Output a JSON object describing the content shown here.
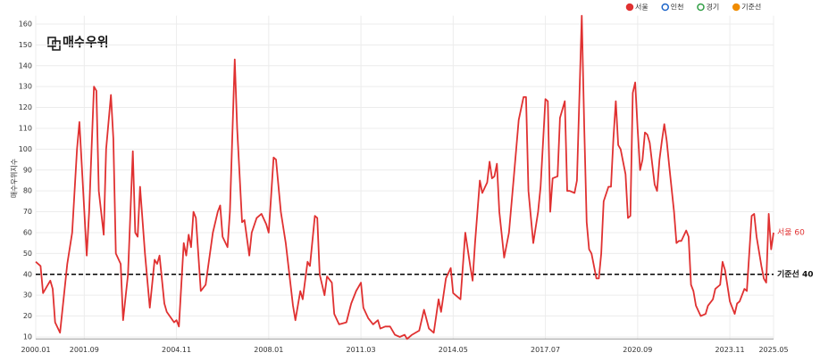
{
  "chart_data": {
    "type": "line",
    "logo": "매수우위",
    "y_label": "매수우위지수",
    "legend": [
      {
        "name": "서울",
        "color": "#e03131",
        "filled": true
      },
      {
        "name": "인천",
        "color": "#1c64c8",
        "filled": false
      },
      {
        "name": "경기",
        "color": "#2f9e44",
        "filled": false
      },
      {
        "name": "기준선",
        "color": "#f08c00",
        "filled": true
      }
    ],
    "x": [
      "2000.01",
      "2000.03",
      "2000.04",
      "2000.07",
      "2000.08",
      "2000.09",
      "2000.11",
      "2001.02",
      "2001.04",
      "2001.06",
      "2001.07",
      "2001.10",
      "2001.11",
      "2002.01",
      "2002.02",
      "2002.03",
      "2002.05",
      "2002.06",
      "2002.08",
      "2002.09",
      "2002.10",
      "2002.12",
      "2003.01",
      "2003.03",
      "2003.05",
      "2003.06",
      "2003.07",
      "2003.08",
      "2003.10",
      "2003.12",
      "2004.02",
      "2004.03",
      "2004.04",
      "2004.06",
      "2004.07",
      "2004.10",
      "2004.11",
      "2004.12",
      "2005.02",
      "2005.03",
      "2005.04",
      "2005.05",
      "2005.06",
      "2005.07",
      "2005.09",
      "2005.11",
      "2006.02",
      "2006.04",
      "2006.05",
      "2006.06",
      "2006.08",
      "2006.09",
      "2006.11",
      "2006.12",
      "2007.02",
      "2007.03",
      "2007.05",
      "2007.06",
      "2007.08",
      "2007.10",
      "2007.12",
      "2008.01",
      "2008.02",
      "2008.03",
      "2008.04",
      "2008.06",
      "2008.08",
      "2008.09",
      "2008.11",
      "2008.12",
      "2009.02",
      "2009.03",
      "2009.05",
      "2009.06",
      "2009.08",
      "2009.09",
      "2009.10",
      "2009.12",
      "2010.01",
      "2010.03",
      "2010.04",
      "2010.06",
      "2010.09",
      "2010.11",
      "2011.01",
      "2011.03",
      "2011.04",
      "2011.06",
      "2011.08",
      "2011.10",
      "2011.11",
      "2012.01",
      "2012.03",
      "2012.05",
      "2012.07",
      "2012.09",
      "2012.10",
      "2012.12",
      "2013.03",
      "2013.05",
      "2013.07",
      "2013.09",
      "2013.11",
      "2013.12",
      "2014.02",
      "2014.04",
      "2014.05",
      "2014.08",
      "2014.10",
      "2014.12",
      "2015.01",
      "2015.02",
      "2015.04",
      "2015.05",
      "2015.07",
      "2015.08",
      "2015.09",
      "2015.10",
      "2015.11",
      "2015.12",
      "2016.02",
      "2016.04",
      "2016.06",
      "2016.08",
      "2016.10",
      "2016.11",
      "2016.12",
      "2017.02",
      "2017.04",
      "2017.05",
      "2017.07",
      "2017.08",
      "2017.09",
      "2017.10",
      "2017.12",
      "2018.01",
      "2018.03",
      "2018.04",
      "2018.05",
      "2018.07",
      "2018.08",
      "2018.10",
      "2018.11",
      "2018.12",
      "2019.01",
      "2019.02",
      "2019.04",
      "2019.05",
      "2019.06",
      "2019.07",
      "2019.09",
      "2019.10",
      "2019.11",
      "2019.12",
      "2020.01",
      "2020.02",
      "2020.04",
      "2020.05",
      "2020.06",
      "2020.07",
      "2020.08",
      "2020.09",
      "2020.10",
      "2020.11",
      "2020.12",
      "2021.01",
      "2021.02",
      "2021.04",
      "2021.05",
      "2021.06",
      "2021.07",
      "2021.08",
      "2021.09",
      "2021.10",
      "2021.12",
      "2022.01",
      "2022.02",
      "2022.03",
      "2022.05",
      "2022.06",
      "2022.07",
      "2022.08",
      "2022.09",
      "2022.11",
      "2023.01",
      "2023.02",
      "2023.04",
      "2023.05",
      "2023.07",
      "2023.08",
      "2023.09",
      "2023.11",
      "2024.01",
      "2024.02",
      "2024.03",
      "2024.05",
      "2024.06",
      "2024.07",
      "2024.08",
      "2024.09",
      "2024.10",
      "2024.12",
      "2025.01",
      "2025.02",
      "2025.03",
      "2025.04",
      "2025.05"
    ],
    "series": [
      {
        "name": "서울",
        "color": "#e03131",
        "values": [
          46,
          44,
          31,
          37,
          33,
          17,
          12,
          45,
          60,
          100,
          113,
          49,
          70,
          130,
          128,
          80,
          59,
          100,
          126,
          105,
          50,
          45,
          18,
          40,
          99,
          60,
          58,
          82,
          50,
          24,
          47,
          45,
          49,
          26,
          22,
          17,
          18,
          15,
          55,
          49,
          59,
          53,
          70,
          67,
          32,
          35,
          60,
          70,
          73,
          58,
          53,
          70,
          143,
          110,
          65,
          66,
          49,
          60,
          67,
          69,
          64,
          60,
          78,
          96,
          95,
          70,
          55,
          45,
          25,
          18,
          32,
          28,
          46,
          44,
          68,
          67,
          40,
          30,
          39,
          36,
          21,
          16,
          17,
          26,
          32,
          36,
          24,
          19,
          16,
          18,
          14,
          15,
          15,
          11,
          10,
          11,
          9,
          11,
          13,
          23,
          14,
          12,
          28,
          22,
          38,
          43,
          31,
          28,
          60,
          44,
          37,
          55,
          85,
          79,
          84,
          94,
          86,
          87,
          93,
          70,
          48,
          60,
          87,
          114,
          125,
          125,
          80,
          55,
          70,
          82,
          124,
          123,
          70,
          86,
          87,
          115,
          123,
          80,
          80,
          79,
          85,
          164,
          110,
          65,
          52,
          50,
          38,
          38,
          50,
          75,
          82,
          82,
          105,
          123,
          102,
          100,
          88,
          67,
          68,
          127,
          132,
          110,
          90,
          95,
          108,
          107,
          103,
          83,
          80,
          95,
          104,
          112,
          104,
          92,
          70,
          55,
          56,
          56,
          61,
          58,
          35,
          32,
          25,
          20,
          21,
          25,
          28,
          33,
          35,
          46,
          42,
          27,
          21,
          26,
          27,
          33,
          32,
          50,
          68,
          69,
          58,
          44,
          38,
          36,
          69,
          52,
          60
        ],
        "end_label": "서울 60"
      }
    ],
    "reference_line": {
      "value": 40,
      "label": "기준선 40",
      "color": "#000000"
    },
    "xlim": [
      "2000.01",
      "2025.05"
    ],
    "xticks": [
      "2000.01",
      "2001.09",
      "2004.11",
      "2008.01",
      "2011.03",
      "2014.05",
      "2017.07",
      "2020.09",
      "2023.11",
      "2025.05"
    ],
    "ylim": [
      9,
      164
    ],
    "yticks": [
      10,
      20,
      30,
      40,
      50,
      60,
      70,
      80,
      90,
      100,
      110,
      120,
      130,
      140,
      150,
      160
    ],
    "grid": true
  }
}
